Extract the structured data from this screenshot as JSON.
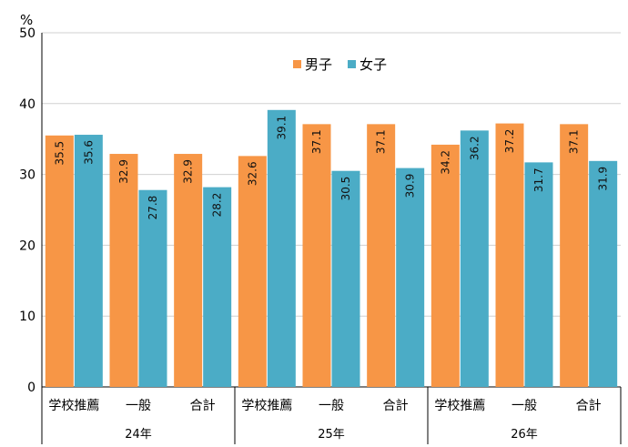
{
  "chart_data": {
    "type": "bar",
    "y_unit": "%",
    "ylim": [
      0,
      50
    ],
    "yticks": [
      0,
      10,
      20,
      30,
      40,
      50
    ],
    "grid": true,
    "legend_position": "top-center",
    "groups": [
      {
        "label": "24年",
        "categories": [
          "学校推薦",
          "一般",
          "合計"
        ]
      },
      {
        "label": "25年",
        "categories": [
          "学校推薦",
          "一般",
          "合計"
        ]
      },
      {
        "label": "26年",
        "categories": [
          "学校推薦",
          "一般",
          "合計"
        ]
      }
    ],
    "series": [
      {
        "name": "男子",
        "color": "#f79646",
        "values": [
          35.5,
          32.9,
          32.9,
          32.6,
          37.1,
          37.1,
          34.2,
          37.2,
          37.1
        ]
      },
      {
        "name": "女子",
        "color": "#4bacc6",
        "values": [
          35.6,
          27.8,
          28.2,
          39.1,
          30.5,
          30.9,
          36.2,
          31.7,
          31.9
        ]
      }
    ]
  }
}
